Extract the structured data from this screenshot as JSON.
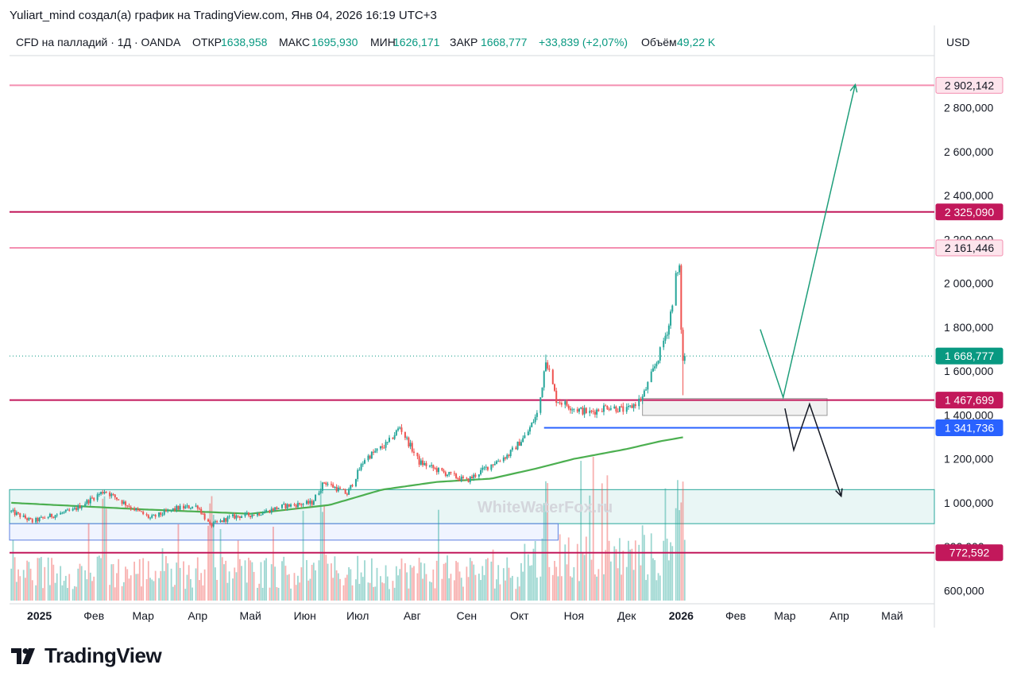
{
  "caption": "Yuliart_mind создал(а) график на TradingView.com, Янв 04, 2026 16:19 UTC+3",
  "header": {
    "symbol": "CFD на палладий · 1Д · OANDA",
    "open_label": "ОТКР",
    "open_value": "1638,958",
    "high_label": "МАКС",
    "high_value": "1695,930",
    "low_label": "МИН",
    "low_value": "1626,171",
    "close_label": "ЗАКР",
    "close_value": "1668,777",
    "change": "+33,839 (+2,07%)",
    "volume_label": "Объём",
    "volume_value": "49,22 K"
  },
  "currency": "USD",
  "watermark": "WhiteWaterFox.ru",
  "brand": "TradingView",
  "colors": {
    "up": "#26a69a",
    "down": "#ef5350",
    "ma": "#4caf50",
    "crimson": "#c2185b",
    "pink": "#f48fb1",
    "blue": "#2962ff",
    "price_badge": "#089981",
    "teal_line": "#089981"
  },
  "chart_data": {
    "type": "candlestick",
    "y_ticks": [
      "2 800,000",
      "2 600,000",
      "2 400,000",
      "2 200,000",
      "2 000,000",
      "1 800,000",
      "1 600,000",
      "1 400,000",
      "1 200,000",
      "1 000,000",
      "800,000",
      "600,000"
    ],
    "y_tick_values": [
      2800,
      2600,
      2400,
      2200,
      2000,
      1800,
      1600,
      1400,
      1200,
      1000,
      800,
      600
    ],
    "ylim": [
      540,
      3030
    ],
    "x_ticks": [
      {
        "label": "2025",
        "date": "2025-01-01",
        "bold": true
      },
      {
        "label": "Фев",
        "date": "2025-02-01"
      },
      {
        "label": "Мар",
        "date": "2025-03-01"
      },
      {
        "label": "Апр",
        "date": "2025-04-01"
      },
      {
        "label": "Май",
        "date": "2025-05-01"
      },
      {
        "label": "Июн",
        "date": "2025-06-01"
      },
      {
        "label": "Июл",
        "date": "2025-07-01"
      },
      {
        "label": "Авг",
        "date": "2025-08-01"
      },
      {
        "label": "Сен",
        "date": "2025-09-01"
      },
      {
        "label": "Окт",
        "date": "2025-10-01"
      },
      {
        "label": "Ноя",
        "date": "2025-11-01"
      },
      {
        "label": "Дек",
        "date": "2025-12-01"
      },
      {
        "label": "2026",
        "date": "2026-01-01",
        "bold": true
      },
      {
        "label": "Фев",
        "date": "2026-02-01"
      },
      {
        "label": "Мар",
        "date": "2026-03-01"
      },
      {
        "label": "Апр",
        "date": "2026-04-01"
      },
      {
        "label": "Май",
        "date": "2026-05-01"
      }
    ],
    "x_range": [
      "2024-12-15",
      "2026-05-25"
    ],
    "price_anchors": [
      [
        "2024-12-16",
        960
      ],
      [
        "2024-12-28",
        915
      ],
      [
        "2025-01-05",
        935
      ],
      [
        "2025-01-20",
        965
      ],
      [
        "2025-02-07",
        1055
      ],
      [
        "2025-02-20",
        990
      ],
      [
        "2025-03-05",
        930
      ],
      [
        "2025-03-20",
        975
      ],
      [
        "2025-04-01",
        985
      ],
      [
        "2025-04-08",
        895
      ],
      [
        "2025-04-20",
        935
      ],
      [
        "2025-05-05",
        950
      ],
      [
        "2025-05-20",
        985
      ],
      [
        "2025-06-05",
        1000
      ],
      [
        "2025-06-12",
        1095
      ],
      [
        "2025-06-25",
        1040
      ],
      [
        "2025-07-05",
        1200
      ],
      [
        "2025-07-18",
        1270
      ],
      [
        "2025-07-25",
        1345
      ],
      [
        "2025-08-05",
        1185
      ],
      [
        "2025-08-18",
        1140
      ],
      [
        "2025-09-01",
        1100
      ],
      [
        "2025-09-15",
        1175
      ],
      [
        "2025-09-25",
        1220
      ],
      [
        "2025-10-05",
        1310
      ],
      [
        "2025-10-12",
        1420
      ],
      [
        "2025-10-16",
        1660
      ],
      [
        "2025-10-22",
        1470
      ],
      [
        "2025-11-01",
        1430
      ],
      [
        "2025-11-10",
        1410
      ],
      [
        "2025-11-20",
        1440
      ],
      [
        "2025-12-01",
        1420
      ],
      [
        "2025-12-10",
        1480
      ],
      [
        "2025-12-18",
        1640
      ],
      [
        "2025-12-25",
        1810
      ],
      [
        "2025-12-29",
        2030
      ],
      [
        "2025-12-31",
        2060
      ],
      [
        "2026-01-01",
        1800
      ],
      [
        "2026-01-02",
        1640
      ],
      [
        "2026-01-03",
        1669
      ]
    ],
    "ma_anchors": [
      [
        "2024-12-16",
        1000
      ],
      [
        "2025-03-01",
        970
      ],
      [
        "2025-05-01",
        950
      ],
      [
        "2025-06-15",
        990
      ],
      [
        "2025-07-15",
        1060
      ],
      [
        "2025-08-15",
        1095
      ],
      [
        "2025-09-15",
        1110
      ],
      [
        "2025-10-10",
        1155
      ],
      [
        "2025-11-01",
        1200
      ],
      [
        "2025-12-01",
        1245
      ],
      [
        "2025-12-20",
        1280
      ],
      [
        "2026-01-03",
        1300
      ]
    ],
    "volume": {
      "ylim": [
        0,
        100000
      ],
      "spike_dates": [
        "2025-02-07",
        "2025-04-09",
        "2025-06-11",
        "2025-10-16",
        "2025-12-29",
        "2025-12-31",
        "2026-01-01"
      ],
      "base_level": 20000,
      "spike_level": 85000
    },
    "horizontal_levels": [
      {
        "value": 2902.142,
        "label": "2 902,142",
        "style": "pink"
      },
      {
        "value": 2325.09,
        "label": "2 325,090",
        "style": "crimson"
      },
      {
        "value": 2161.446,
        "label": "2 161,446",
        "style": "pink"
      },
      {
        "value": 1467.699,
        "label": "1 467,699",
        "style": "crimson"
      },
      {
        "value": 1341.736,
        "label": "1 341,736",
        "style": "blue",
        "from_date": "2025-10-15"
      },
      {
        "value": 772.592,
        "label": "772,592",
        "style": "crimson"
      }
    ],
    "current_price": {
      "value": 1668.777,
      "label": "1 668,777"
    },
    "zones": [
      {
        "name": "green-zone",
        "y_top": 1060,
        "y_bottom": 905,
        "from": "2024-12-15",
        "to": "2026-05-25",
        "color": "green"
      },
      {
        "name": "blue-zone",
        "y_top": 905,
        "y_bottom": 830,
        "from": "2024-12-15",
        "to": "2025-10-23",
        "color": "blue"
      },
      {
        "name": "grey-zone",
        "y_top": 1475,
        "y_bottom": 1398,
        "from": "2025-12-10",
        "to": "2026-03-25",
        "color": "grey"
      }
    ],
    "forecast_green": [
      [
        "2026-02-15",
        1790
      ],
      [
        "2026-02-28",
        1480
      ],
      [
        "2026-04-10",
        2905
      ]
    ],
    "forecast_black": [
      [
        "2026-03-01",
        1430
      ],
      [
        "2026-03-06",
        1240
      ],
      [
        "2026-03-15",
        1450
      ],
      [
        "2026-04-02",
        1030
      ]
    ]
  }
}
